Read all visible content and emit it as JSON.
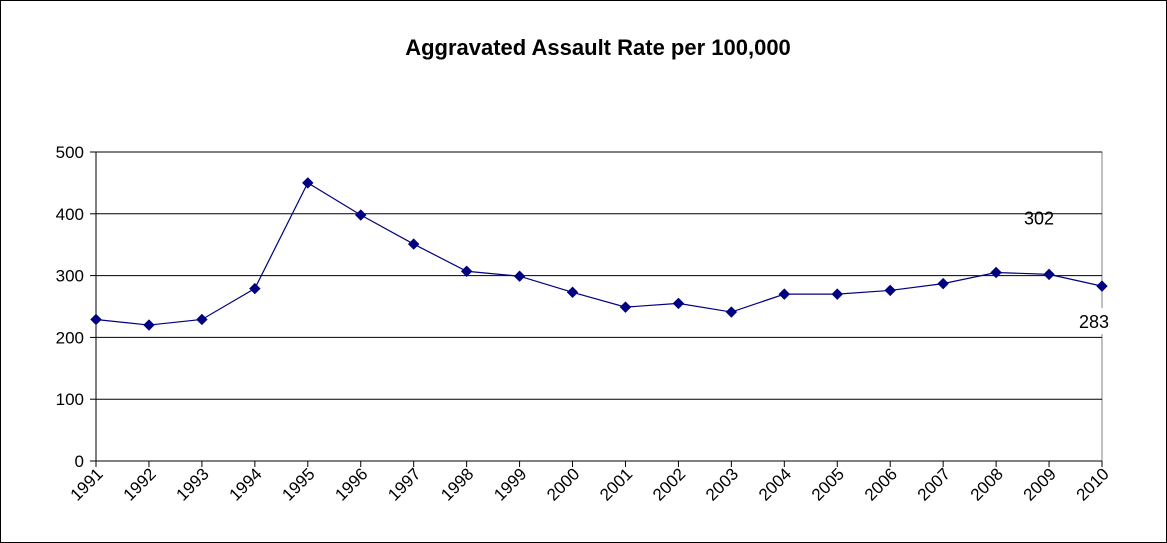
{
  "chart_data": {
    "type": "line",
    "title": "Aggravated Assault Rate per 100,000",
    "xlabel": "",
    "ylabel": "",
    "categories": [
      "1991",
      "1992",
      "1993",
      "1994",
      "1995",
      "1996",
      "1997",
      "1998",
      "1999",
      "2000",
      "2001",
      "2002",
      "2003",
      "2004",
      "2005",
      "2006",
      "2007",
      "2008",
      "2009",
      "2010"
    ],
    "series": [
      {
        "name": "",
        "values": [
          229,
          220,
          229,
          279,
          450,
          398,
          351,
          307,
          299,
          273,
          249,
          255,
          241,
          270,
          270,
          276,
          287,
          305,
          302,
          283
        ],
        "color": "#000080"
      }
    ],
    "ylim": [
      0,
      500
    ],
    "yticks": [
      "0",
      "100",
      "200",
      "300",
      "400",
      "500"
    ],
    "grid": true,
    "legend": "none",
    "data_labels": [
      {
        "text": "302",
        "index": 18
      },
      {
        "text": "283",
        "index": 19
      }
    ],
    "marker": "diamond"
  }
}
